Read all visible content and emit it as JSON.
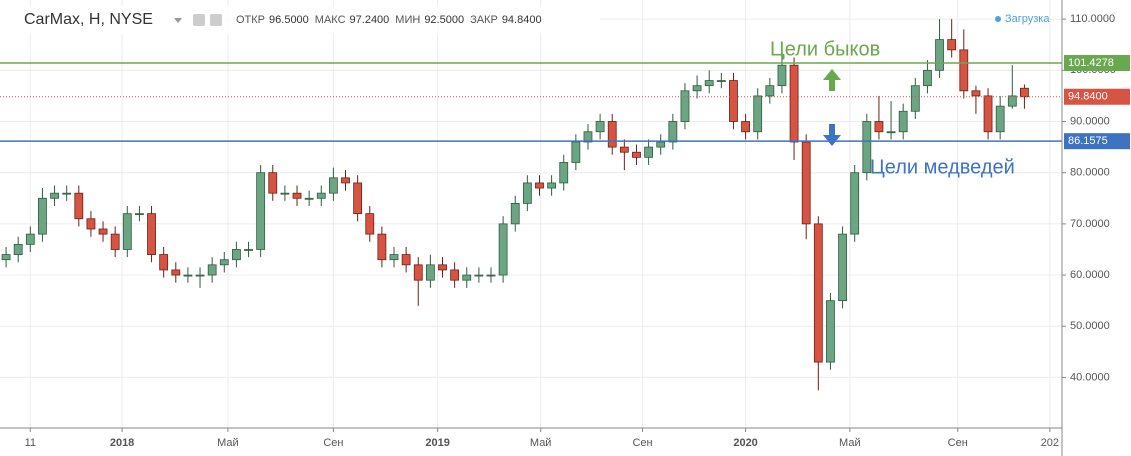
{
  "chart_data": {
    "type": "candlestick",
    "title": "CarMax, H, NYSE",
    "legend": {
      "labels": [
        "ОТКР",
        "МАКС",
        "МИН",
        "ЗАКР"
      ],
      "values": [
        {
          "value": 96.5,
          "label": "96.5000"
        },
        {
          "value": 97.24,
          "label": "97.2400"
        },
        {
          "value": 92.5,
          "label": "92.5000"
        },
        {
          "value": 94.84,
          "label": "94.8400"
        }
      ]
    },
    "status": "Загрузка",
    "open": [
      63,
      64,
      66,
      68,
      75,
      76,
      76,
      71,
      69,
      68,
      65,
      72,
      72,
      64,
      61,
      60,
      60,
      60,
      62,
      63,
      65,
      65,
      80,
      76,
      76,
      75,
      75,
      76,
      79,
      78,
      72,
      68,
      63,
      64,
      62,
      59,
      62,
      61,
      59,
      60,
      60,
      60,
      70,
      74,
      78,
      77,
      78,
      82,
      86,
      88,
      90,
      85,
      84,
      83,
      85,
      86,
      90,
      96,
      97,
      98,
      98,
      90,
      88,
      95,
      97,
      101,
      86,
      70,
      43,
      55,
      68,
      80,
      90,
      88,
      88,
      92,
      97,
      100,
      106,
      104,
      96,
      95,
      88,
      93,
      96.5
    ],
    "high": [
      65.5,
      67.5,
      69.5,
      77,
      77.5,
      77.5,
      77.5,
      72.5,
      70.5,
      69.5,
      73.5,
      73.5,
      73.5,
      65.5,
      62.5,
      61.5,
      61.5,
      63.5,
      64.5,
      66.5,
      66.5,
      81.5,
      81.5,
      77.5,
      77.5,
      76.5,
      77.5,
      81,
      80.5,
      79.5,
      73.5,
      69.5,
      65.5,
      65.5,
      63.5,
      64,
      63.5,
      62.5,
      61.5,
      61.5,
      61.5,
      71.5,
      75.5,
      79.5,
      79.5,
      79.5,
      83.5,
      87.5,
      89.5,
      91.5,
      91.5,
      86.5,
      85.5,
      86.5,
      87.5,
      91.5,
      97.5,
      99,
      100,
      99.5,
      99.5,
      91.5,
      96.5,
      98.5,
      103,
      102.5,
      87.5,
      71.5,
      56.5,
      69.5,
      81.5,
      91.5,
      95,
      94,
      93.5,
      98.5,
      102,
      110,
      110,
      108,
      97,
      96.5,
      95,
      101,
      97.24
    ],
    "low": [
      61.5,
      62.5,
      64.5,
      66.5,
      73.5,
      74.5,
      69.5,
      67.5,
      66.5,
      63.5,
      63.5,
      70.5,
      62.5,
      59.5,
      58.5,
      58.5,
      57.5,
      58.5,
      60.5,
      61.5,
      63.5,
      63.5,
      74.5,
      74.5,
      73.5,
      73.5,
      73.5,
      74.5,
      76.5,
      70.5,
      66.5,
      61.5,
      61.5,
      60.5,
      54,
      57.5,
      59.5,
      57.5,
      57.5,
      58.5,
      58.5,
      58.5,
      68.5,
      72.5,
      75.5,
      75.5,
      76.5,
      80.5,
      84.5,
      86.5,
      83.5,
      80.5,
      81.5,
      81.5,
      83.5,
      84.5,
      88.5,
      94.5,
      95.5,
      96.5,
      88.5,
      86.5,
      86.5,
      93.5,
      95.5,
      82.5,
      67,
      37.5,
      41.5,
      53.5,
      66.5,
      78.5,
      86.5,
      86.5,
      86.5,
      90.5,
      95.5,
      98.5,
      102.5,
      94.5,
      91.5,
      86.5,
      86.5,
      92.5,
      92.5
    ],
    "close": [
      64,
      66,
      68,
      75,
      76,
      76,
      71,
      69,
      68,
      65,
      72,
      72,
      64,
      61,
      60,
      60,
      60,
      62,
      63,
      65,
      65,
      80,
      76,
      76,
      75,
      75,
      76,
      79,
      78,
      72,
      68,
      63,
      64,
      62,
      59,
      62,
      61,
      59,
      60,
      60,
      60,
      70,
      74,
      78,
      77,
      78,
      82,
      86,
      88,
      90,
      85,
      84,
      83,
      85,
      86,
      90,
      96,
      97,
      98,
      98,
      90,
      88,
      95,
      97,
      101,
      86,
      70,
      43,
      55,
      68,
      80,
      90,
      88,
      88,
      92,
      97,
      100,
      106,
      104,
      96,
      95,
      88,
      93,
      95,
      94.84
    ],
    "up_color": "#6ba583",
    "down_color": "#d75442",
    "xlim": [
      -0.5,
      87.1
    ],
    "xticks": [
      {
        "value": 2.0,
        "label": "11"
      },
      {
        "value": 9.57,
        "label": "2018"
      },
      {
        "value": 18.3,
        "label": "Май"
      },
      {
        "value": 27.0,
        "label": "Сен"
      },
      {
        "value": 35.6,
        "label": "2019"
      },
      {
        "value": 44.1,
        "label": "Май"
      },
      {
        "value": 52.5,
        "label": "Сен"
      },
      {
        "value": 61.0,
        "label": "2020"
      },
      {
        "value": 69.6,
        "label": "Май"
      },
      {
        "value": 78.5,
        "label": "Сен"
      },
      {
        "value": 86.1,
        "label": "202"
      }
    ],
    "ylim": [
      30.12,
      113.74
    ],
    "yticks": [
      {
        "value": 40,
        "label": "40.0000"
      },
      {
        "value": 50,
        "label": "50.0000"
      },
      {
        "value": 60,
        "label": "60.0000"
      },
      {
        "value": 70,
        "label": "70.0000"
      },
      {
        "value": 80,
        "label": "80.0000"
      },
      {
        "value": 90,
        "label": "90.0000"
      },
      {
        "value": 100,
        "label": "100.0000"
      },
      {
        "value": 110,
        "label": "110.0000"
      }
    ],
    "grid": true,
    "levels": [
      {
        "value": 101.4278,
        "label": "101.4278",
        "color": "#6aa84f",
        "style": "solid"
      },
      {
        "value": 94.84,
        "label": "94.8400",
        "color": "#d75442",
        "style": "dotted"
      },
      {
        "value": 86.1575,
        "label": "86.1575",
        "color": "#3d73c2",
        "style": "solid"
      }
    ],
    "annotations": [
      {
        "text": "Цели быков",
        "color": "#6aa84f"
      },
      {
        "text": "Цели медведей",
        "color": "#3d73c2"
      }
    ]
  }
}
